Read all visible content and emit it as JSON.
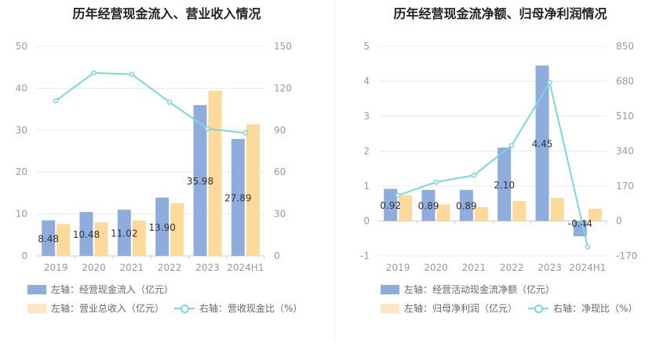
{
  "colors": {
    "blue": "#8eaddc",
    "orange": "#fdd99b",
    "line": "#7fd6d9",
    "axis_text": "#999999",
    "grid": "#e8e8e8",
    "label": "#333333"
  },
  "chart_data": [
    {
      "type": "bar",
      "title": "历年经营现金流入、营业收入情况",
      "categories": [
        "2019",
        "2020",
        "2021",
        "2022",
        "2023",
        "2024H1"
      ],
      "left_axis": {
        "min": 0,
        "max": 50,
        "ticks": [
          "0",
          "10",
          "20",
          "30",
          "40",
          "50"
        ]
      },
      "right_axis": {
        "min": 0,
        "max": 150,
        "ticks": [
          "0",
          "30",
          "60",
          "90",
          "120",
          "150"
        ]
      },
      "series": [
        {
          "name": "左轴：经营现金流入（亿元）",
          "axis": "left",
          "kind": "bar",
          "values": [
            8.48,
            10.48,
            11.02,
            13.9,
            35.98,
            27.89
          ],
          "labels": [
            "8.48",
            "10.48",
            "11.02",
            "13.90",
            "35.98",
            "27.89"
          ]
        },
        {
          "name": "左轴：营业总收入（亿元）",
          "axis": "left",
          "kind": "bar",
          "values": [
            7.6,
            8.0,
            8.4,
            12.6,
            39.4,
            31.4
          ]
        },
        {
          "name": "右轴：营收现金比（%）",
          "axis": "right",
          "kind": "line",
          "values": [
            111,
            131,
            130,
            110,
            91,
            88
          ]
        }
      ]
    },
    {
      "type": "bar",
      "title": "历年经营现金流净额、归母净利润情况",
      "categories": [
        "2019",
        "2020",
        "2021",
        "2022",
        "2023",
        "2024H1"
      ],
      "left_axis": {
        "min": -1,
        "max": 5,
        "ticks": [
          "-1",
          "0",
          "1",
          "2",
          "3",
          "4",
          "5"
        ]
      },
      "right_axis": {
        "min": -170,
        "max": 850,
        "ticks": [
          "-170",
          "0",
          "170",
          "340",
          "510",
          "680",
          "850"
        ]
      },
      "series": [
        {
          "name": "左轴：经营活动现金流净额（亿元）",
          "axis": "left",
          "kind": "bar",
          "values": [
            0.92,
            0.89,
            0.89,
            2.1,
            4.45,
            -0.44
          ],
          "labels": [
            "0.92",
            "0.89",
            "0.89",
            "2.10",
            "4.45",
            "-0.44"
          ]
        },
        {
          "name": "左轴：归母净利润（亿元）",
          "axis": "left",
          "kind": "bar",
          "values": [
            0.74,
            0.47,
            0.4,
            0.57,
            0.66,
            0.35
          ]
        },
        {
          "name": "右轴：净现比（%）",
          "axis": "right",
          "kind": "line",
          "values": [
            124,
            189,
            222,
            368,
            674,
            -126
          ]
        }
      ]
    }
  ]
}
